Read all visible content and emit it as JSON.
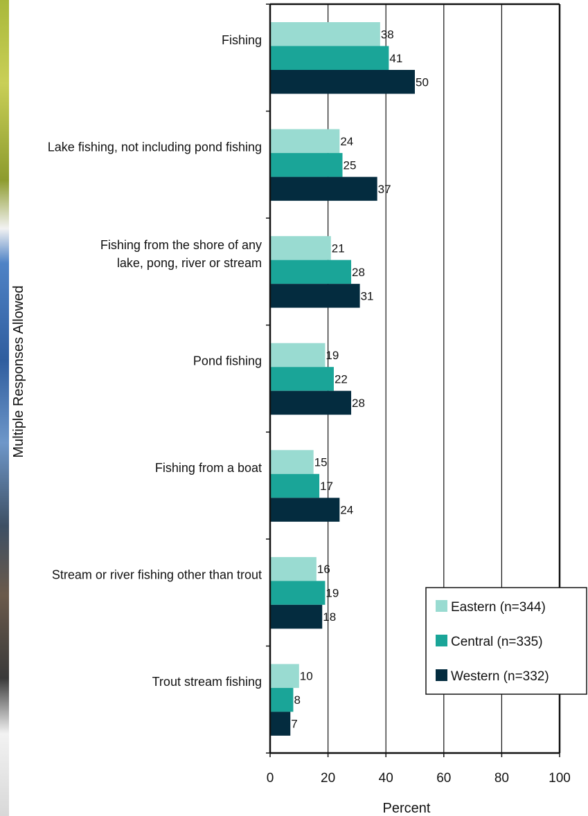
{
  "chart_data": {
    "type": "bar",
    "orientation": "horizontal",
    "categories": [
      "Fishing",
      "Lake fishing, not including pond fishing",
      "Fishing from the shore of any lake, pong, river or stream",
      "Pond fishing",
      "Fishing from a boat",
      "Stream or river fishing other than trout",
      "Trout stream fishing"
    ],
    "category_lines": [
      [
        "Fishing"
      ],
      [
        "Lake fishing, not including pond fishing"
      ],
      [
        "Fishing from the shore of any",
        "lake, pong, river or stream"
      ],
      [
        "Pond fishing"
      ],
      [
        "Fishing from a boat"
      ],
      [
        "Stream or river fishing other than trout"
      ],
      [
        "Trout stream fishing"
      ]
    ],
    "series": [
      {
        "name": "Eastern (n=344)",
        "color": "#99dbd1",
        "values": [
          38,
          24,
          21,
          19,
          15,
          16,
          10
        ]
      },
      {
        "name": "Central (n=335)",
        "color": "#1aa598",
        "values": [
          41,
          25,
          28,
          22,
          17,
          19,
          8
        ]
      },
      {
        "name": "Western (n=332)",
        "color": "#042c3f",
        "values": [
          50,
          37,
          31,
          28,
          24,
          18,
          7
        ]
      }
    ],
    "xlabel": "Percent",
    "ylabel": "Multiple Responses Allowed",
    "xlim": [
      0,
      100
    ],
    "xticks": [
      0,
      20,
      40,
      60,
      80,
      100
    ],
    "grid": true,
    "legend_position": "bottom-right"
  }
}
